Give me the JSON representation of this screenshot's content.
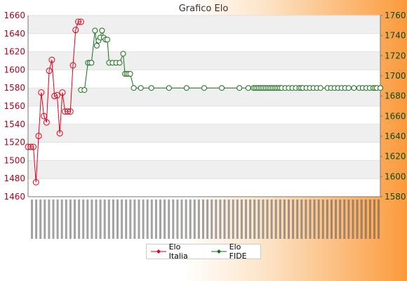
{
  "colors": {
    "italia": "#e4001a",
    "fide": "#1a6e1a",
    "grid_band": "#efefef"
  },
  "chart_data": {
    "type": "line",
    "title": "Grafico Elo",
    "legend_position": "bottom-center",
    "grid": true,
    "x_tick_labels_note_visible": false,
    "left_axis": {
      "ticks": [
        1460,
        1480,
        1500,
        1520,
        1540,
        1560,
        1580,
        1600,
        1620,
        1640,
        1660
      ],
      "ylim": [
        1460,
        1660
      ]
    },
    "right_axis": {
      "ticks": [
        1580,
        1600,
        1620,
        1640,
        1660,
        1680,
        1700,
        1720,
        1740,
        1760
      ],
      "ylim": [
        1580,
        1760
      ]
    },
    "x_range": [
      0,
      200
    ],
    "series": [
      {
        "name": "Elo Italia",
        "axis": "left",
        "x": [
          0,
          1.5,
          3,
          4.5,
          6,
          7.5,
          9,
          10.5,
          12,
          13.5,
          15,
          16.5,
          18,
          19.5,
          21,
          22.5,
          24,
          25.5,
          27,
          28.5,
          30
        ],
        "values": [
          1515,
          1515,
          1515,
          1476,
          1527,
          1575,
          1549,
          1542,
          1599,
          1611,
          1571,
          1572,
          1530,
          1575,
          1554,
          1554,
          1554,
          1605,
          1644,
          1653,
          1653
        ]
      },
      {
        "name": "Elo FIDE",
        "axis": "right",
        "x": [
          30,
          32,
          34,
          35,
          36,
          38,
          39,
          40,
          41,
          42,
          43,
          44,
          45,
          46,
          48,
          50,
          52,
          54,
          55,
          56,
          57,
          58,
          60,
          64,
          70,
          80,
          90,
          100,
          110,
          120,
          125,
          128,
          129,
          130,
          131,
          132,
          133,
          134,
          135,
          136,
          137,
          138,
          139,
          140,
          141,
          142,
          143,
          144,
          146,
          148,
          150,
          152,
          154,
          155,
          156,
          158,
          160,
          162,
          164,
          166,
          170,
          172,
          174,
          176,
          178,
          180,
          182,
          185,
          188,
          190,
          192,
          194,
          196,
          197,
          198,
          200
        ],
        "values": [
          1686,
          1686,
          1713,
          1713,
          1713,
          1745,
          1730,
          1735,
          1738,
          1745,
          1738,
          1736,
          1736,
          1713,
          1713,
          1713,
          1713,
          1722,
          1702,
          1702,
          1702,
          1702,
          1688,
          1688,
          1688,
          1688,
          1688,
          1688,
          1688,
          1688,
          1688,
          1688,
          1688,
          1688,
          1688,
          1688,
          1688,
          1688,
          1688,
          1688,
          1688,
          1688,
          1688,
          1688,
          1688,
          1688,
          1688,
          1688,
          1688,
          1688,
          1688,
          1688,
          1688,
          1688,
          1688,
          1688,
          1688,
          1688,
          1688,
          1688,
          1688,
          1688,
          1688,
          1688,
          1688,
          1688,
          1688,
          1688,
          1688,
          1688,
          1688,
          1688,
          1688,
          1688,
          1688,
          1688
        ]
      }
    ]
  }
}
